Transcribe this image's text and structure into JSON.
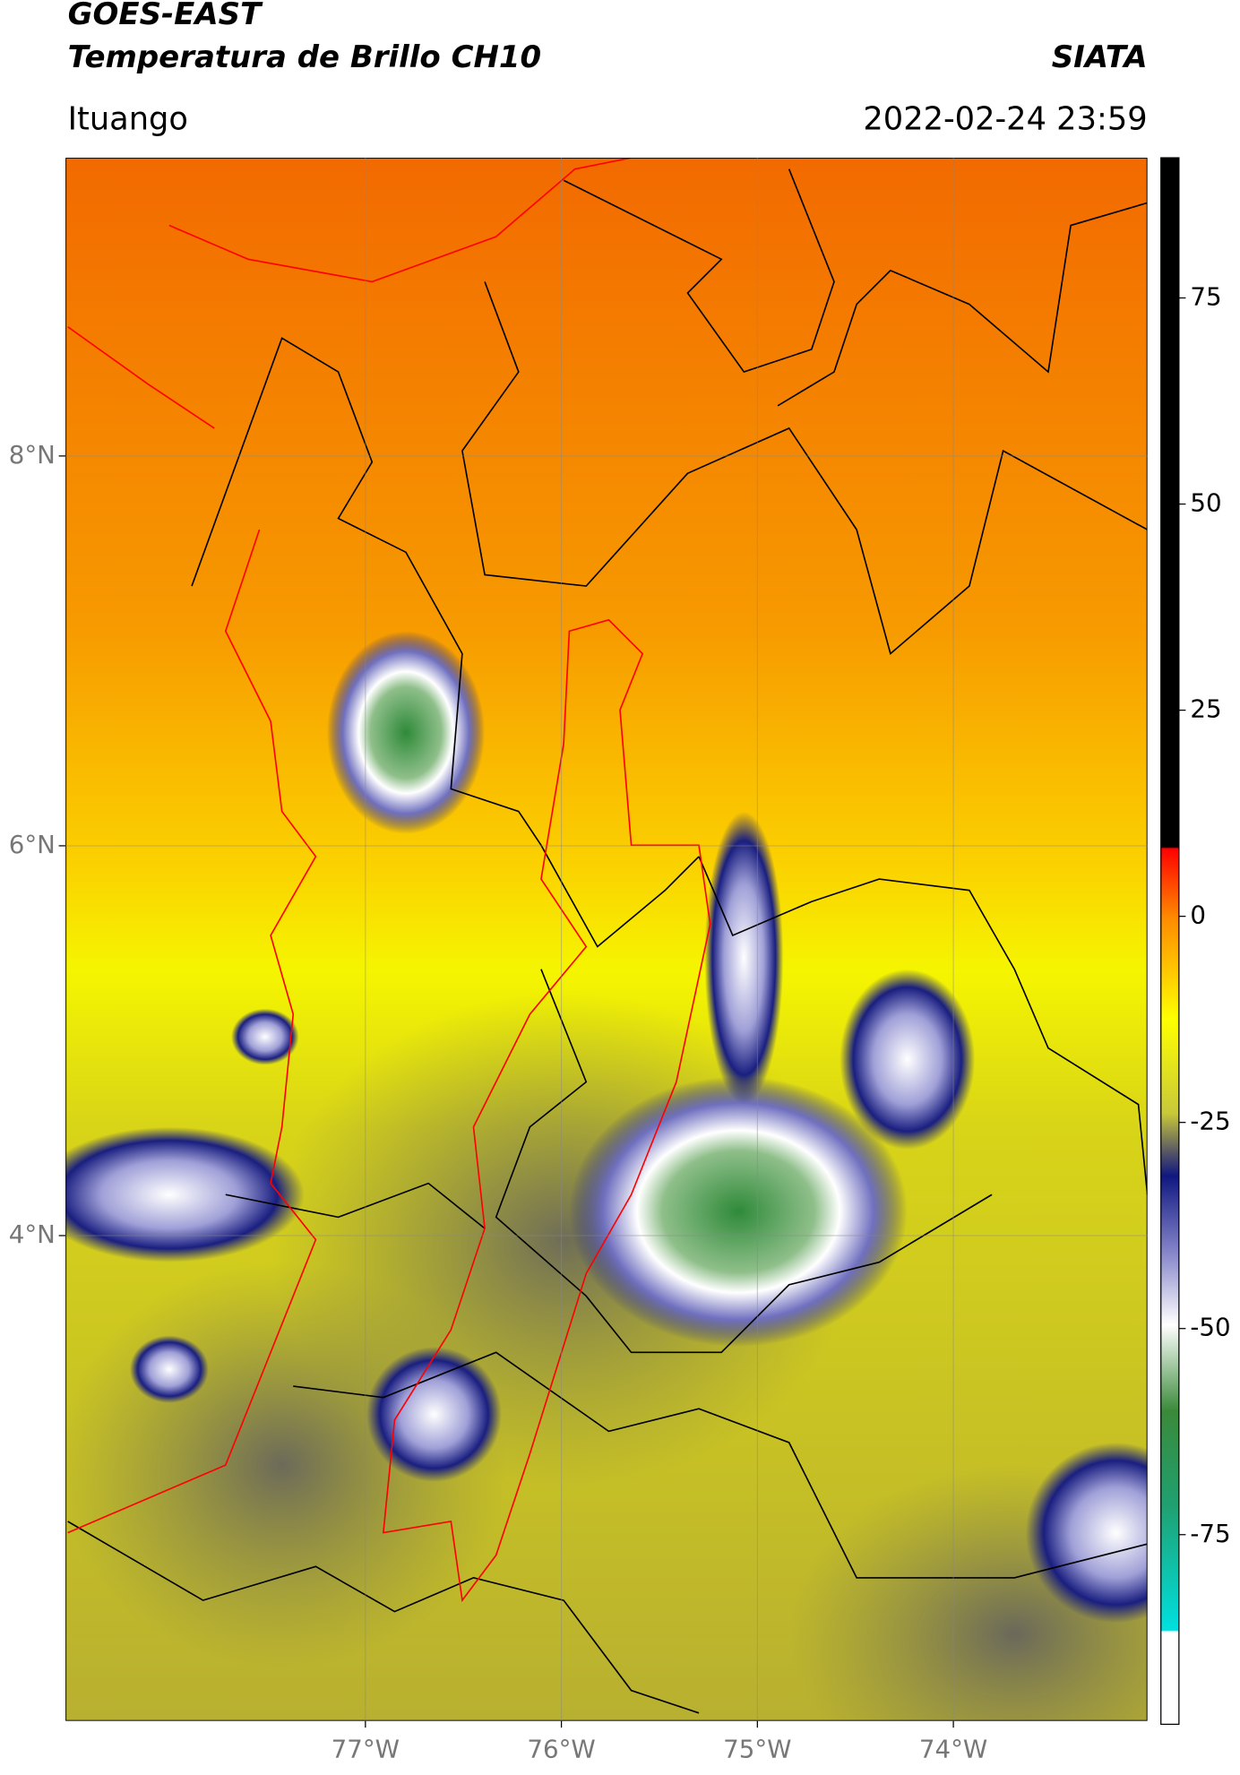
{
  "header": {
    "title": "GOES-EAST",
    "subtitle": "Temperatura de Brillo CH10",
    "brand": "SIATA",
    "location": "Ituango",
    "datetime": "2022-02-24 23:59"
  },
  "map": {
    "xlim": [
      -78.53,
      -73.01
    ],
    "ylim": [
      1.51,
      9.53
    ],
    "xticks": [
      {
        "value": -77,
        "label": "77°W"
      },
      {
        "value": -76,
        "label": "76°W"
      },
      {
        "value": -75,
        "label": "75°W"
      },
      {
        "value": -74,
        "label": "74°W"
      }
    ],
    "yticks": [
      {
        "value": 8,
        "label": "8°N"
      },
      {
        "value": 6,
        "label": "6°N"
      },
      {
        "value": 4,
        "label": "4°N"
      }
    ],
    "grid": true
  },
  "colorbar": {
    "range": [
      -98,
      92
    ],
    "ticks": [
      75,
      50,
      25,
      0,
      -25,
      -50,
      -75
    ]
  }
}
